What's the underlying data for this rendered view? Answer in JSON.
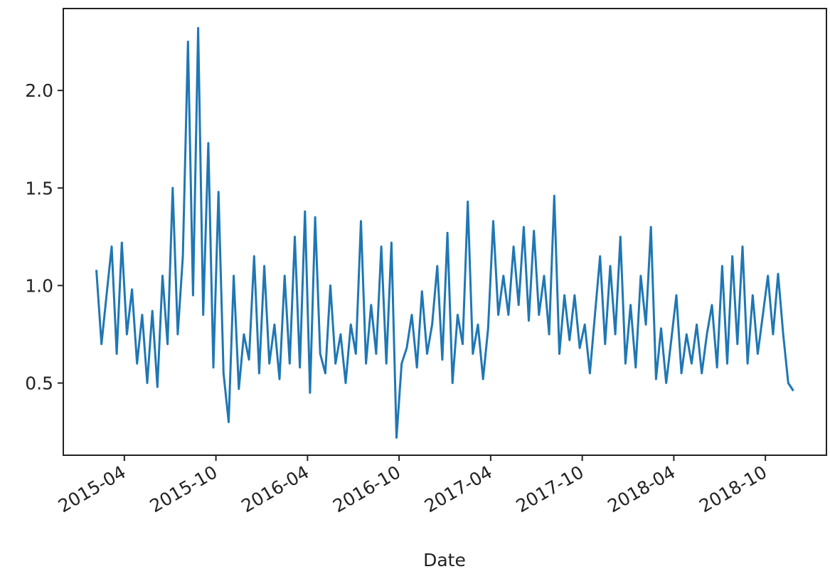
{
  "chart_data": {
    "type": "line",
    "xlabel": "Date",
    "color": "#1f77b4",
    "x": [
      "2015-02",
      "2015-02",
      "2015-02",
      "2015-03",
      "2015-03",
      "2015-03",
      "2015-04",
      "2015-04",
      "2015-04",
      "2015-05",
      "2015-05",
      "2015-05",
      "2015-06",
      "2015-06",
      "2015-06",
      "2015-07",
      "2015-07",
      "2015-07",
      "2015-08",
      "2015-08",
      "2015-08",
      "2015-09",
      "2015-09",
      "2015-09",
      "2015-10",
      "2015-10",
      "2015-10",
      "2015-11",
      "2015-11",
      "2015-11",
      "2015-12",
      "2015-12",
      "2015-12",
      "2016-01",
      "2016-01",
      "2016-01",
      "2016-02",
      "2016-02",
      "2016-02",
      "2016-03",
      "2016-03",
      "2016-03",
      "2016-04",
      "2016-04",
      "2016-04",
      "2016-05",
      "2016-05",
      "2016-05",
      "2016-06",
      "2016-06",
      "2016-06",
      "2016-07",
      "2016-07",
      "2016-07",
      "2016-08",
      "2016-08",
      "2016-08",
      "2016-09",
      "2016-09",
      "2016-09",
      "2016-10",
      "2016-10",
      "2016-10",
      "2016-11",
      "2016-11",
      "2016-11",
      "2016-12",
      "2016-12",
      "2016-12",
      "2017-01",
      "2017-01",
      "2017-01",
      "2017-02",
      "2017-02",
      "2017-02",
      "2017-03",
      "2017-03",
      "2017-03",
      "2017-04",
      "2017-04",
      "2017-04",
      "2017-05",
      "2017-05",
      "2017-05",
      "2017-06",
      "2017-06",
      "2017-06",
      "2017-07",
      "2017-07",
      "2017-07",
      "2017-08",
      "2017-08",
      "2017-08",
      "2017-09",
      "2017-09",
      "2017-09",
      "2017-10",
      "2017-10",
      "2017-10",
      "2017-11",
      "2017-11",
      "2017-11",
      "2017-12",
      "2017-12",
      "2017-12",
      "2018-01",
      "2018-01",
      "2018-01",
      "2018-02",
      "2018-02",
      "2018-02",
      "2018-03",
      "2018-03",
      "2018-03",
      "2018-04",
      "2018-04",
      "2018-04",
      "2018-05",
      "2018-05",
      "2018-05",
      "2018-06",
      "2018-06",
      "2018-06",
      "2018-07",
      "2018-07",
      "2018-07",
      "2018-08",
      "2018-08",
      "2018-08",
      "2018-09",
      "2018-09",
      "2018-09",
      "2018-10",
      "2018-10",
      "2018-10",
      "2018-11",
      "2018-11",
      "2018-11"
    ],
    "values": [
      1.08,
      0.7,
      0.95,
      1.2,
      0.65,
      1.22,
      0.75,
      0.98,
      0.6,
      0.85,
      0.5,
      0.87,
      0.48,
      1.05,
      0.7,
      1.5,
      0.75,
      1.15,
      2.25,
      0.95,
      2.32,
      0.85,
      1.73,
      0.58,
      1.48,
      0.55,
      0.3,
      1.05,
      0.47,
      0.75,
      0.62,
      1.15,
      0.55,
      1.1,
      0.6,
      0.8,
      0.52,
      1.05,
      0.6,
      1.25,
      0.58,
      1.38,
      0.45,
      1.35,
      0.65,
      0.55,
      1.0,
      0.6,
      0.75,
      0.5,
      0.8,
      0.65,
      1.33,
      0.6,
      0.9,
      0.65,
      1.2,
      0.6,
      1.22,
      0.22,
      0.6,
      0.68,
      0.85,
      0.58,
      0.97,
      0.65,
      0.8,
      1.1,
      0.62,
      1.27,
      0.5,
      0.85,
      0.7,
      1.43,
      0.65,
      0.8,
      0.52,
      0.78,
      1.33,
      0.85,
      1.05,
      0.85,
      1.2,
      0.9,
      1.3,
      0.82,
      1.28,
      0.85,
      1.05,
      0.75,
      1.46,
      0.65,
      0.95,
      0.72,
      0.95,
      0.68,
      0.8,
      0.55,
      0.85,
      1.15,
      0.7,
      1.1,
      0.75,
      1.25,
      0.6,
      0.9,
      0.58,
      1.05,
      0.8,
      1.3,
      0.52,
      0.78,
      0.5,
      0.72,
      0.95,
      0.55,
      0.75,
      0.6,
      0.8,
      0.55,
      0.75,
      0.9,
      0.58,
      1.1,
      0.6,
      1.15,
      0.7,
      1.2,
      0.6,
      0.95,
      0.65,
      0.85,
      1.05,
      0.75,
      1.06,
      0.75,
      0.5,
      0.46
    ],
    "xlim": [
      "2014-12",
      "2019-02"
    ],
    "xticks": [
      "2015-04",
      "2015-10",
      "2016-04",
      "2016-10",
      "2017-04",
      "2017-10",
      "2018-04",
      "2018-10"
    ],
    "ylim": [
      0.13,
      2.42
    ],
    "yticks": [
      0.5,
      {
        "value": 1.0,
        "label": "1.0"
      },
      1.5,
      {
        "value": 2.0,
        "label": "2.0"
      }
    ]
  }
}
